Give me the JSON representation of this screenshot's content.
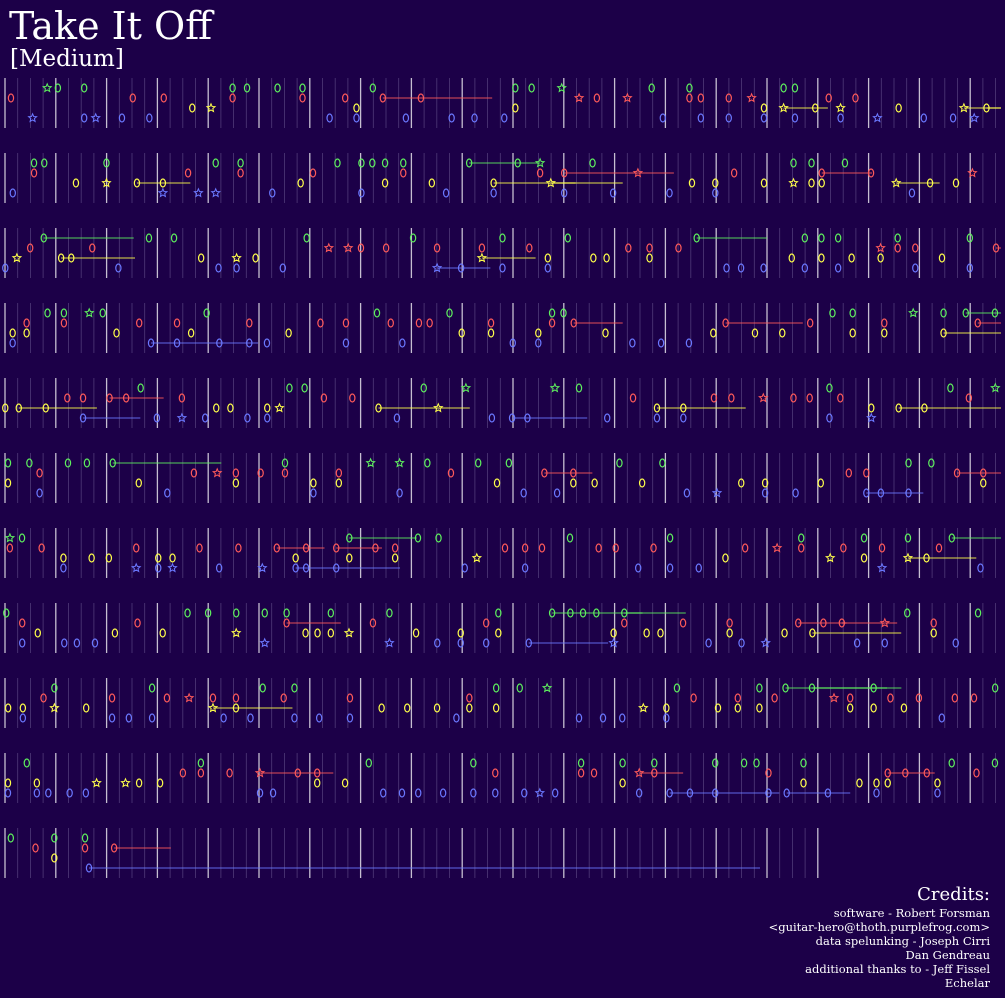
{
  "song": {
    "title": "Take It Off",
    "difficulty": "[Medium]"
  },
  "colors": {
    "background": "#1c0048",
    "green": "#5ef05e",
    "red": "#ff5a5a",
    "yellow": "#ffff4a",
    "blue": "#6b78ff",
    "measure_line": "#ffffff",
    "beat_line": "#7a6aa0"
  },
  "credits": {
    "heading": "Credits:",
    "lines": [
      "software - Robert Forsman",
      "<guitar-hero@thoth.purplefrog.com>",
      "data spelunking - Joseph Cirri",
      "Dan Gendreau",
      "additional thanks to - Jeff Fissel",
      "Echelar"
    ]
  },
  "chart_data": {
    "type": "note-chart",
    "lanes": [
      "green",
      "red",
      "yellow",
      "blue"
    ],
    "rows": 11
  }
}
